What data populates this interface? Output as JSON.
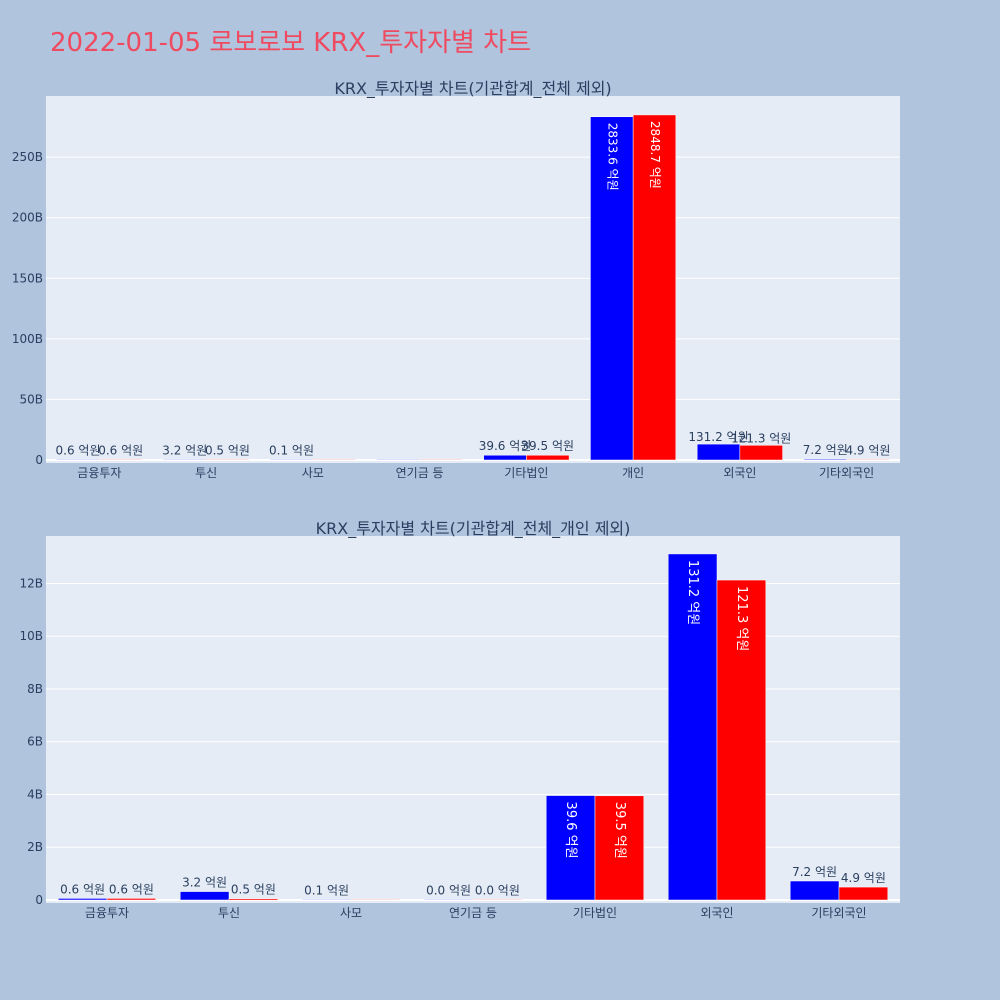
{
  "page_title": "2022-01-05 로보로보 KRX_투자자별 차트",
  "colors": {
    "series_a": "#0000ff",
    "series_b": "#ff0000",
    "plot_bg": "#e5ecf6",
    "page_bg": "#b0c4de",
    "title": "#ef4a5f"
  },
  "chart_data": [
    {
      "type": "bar",
      "title": "KRX_투자자별 차트(기관합계_전체 제외)",
      "categories": [
        "금융투자",
        "투신",
        "사모",
        "연기금 등",
        "기타법인",
        "개인",
        "외국인",
        "기타외국인"
      ],
      "series": [
        {
          "values": [
            0.06,
            0.32,
            0.01,
            0,
            3.96,
            283.36,
            13.12,
            0.72
          ],
          "labels": [
            "0.6 억원",
            "3.2 억원",
            "0.1 억원",
            "",
            "39.6 억원",
            "2833.6 억원",
            "131.2 억원",
            "7.2 억원"
          ]
        },
        {
          "values": [
            0.06,
            0.05,
            0,
            0,
            3.95,
            284.87,
            12.13,
            0.49
          ],
          "labels": [
            "0.6 억원",
            "0.5 억원",
            "",
            "",
            "39.5 억원",
            "2848.7 억원",
            "121.3 억원",
            "4.9 억원"
          ]
        }
      ],
      "yticks": [
        0,
        50,
        100,
        150,
        200,
        250
      ],
      "ytick_labels": [
        "0",
        "50B",
        "100B",
        "150B",
        "200B",
        "250B"
      ],
      "ylim": [
        0,
        300.5
      ],
      "grid": true
    },
    {
      "type": "bar",
      "title": "KRX_투자자별 차트(기관합계_전체_개인 제외)",
      "categories": [
        "금융투자",
        "투신",
        "사모",
        "연기금 등",
        "기타법인",
        "외국인",
        "기타외국인"
      ],
      "series": [
        {
          "values": [
            0.06,
            0.32,
            0.01,
            0,
            3.96,
            13.12,
            0.72
          ],
          "labels": [
            "0.6 억원",
            "3.2 억원",
            "0.1 억원",
            "0.0 억원",
            "39.6 억원",
            "131.2 억원",
            "7.2 억원"
          ]
        },
        {
          "values": [
            0.06,
            0.05,
            0,
            0,
            3.95,
            12.13,
            0.49
          ],
          "labels": [
            "0.6 억원",
            "0.5 억원",
            "",
            "0.0 억원",
            "39.5 억원",
            "121.3 억원",
            "4.9 억원"
          ]
        }
      ],
      "yticks": [
        0,
        2,
        4,
        6,
        8,
        10,
        12
      ],
      "ytick_labels": [
        "0",
        "2B",
        "4B",
        "6B",
        "8B",
        "10B",
        "12B"
      ],
      "ylim": [
        0,
        13.8
      ],
      "grid": true
    }
  ]
}
